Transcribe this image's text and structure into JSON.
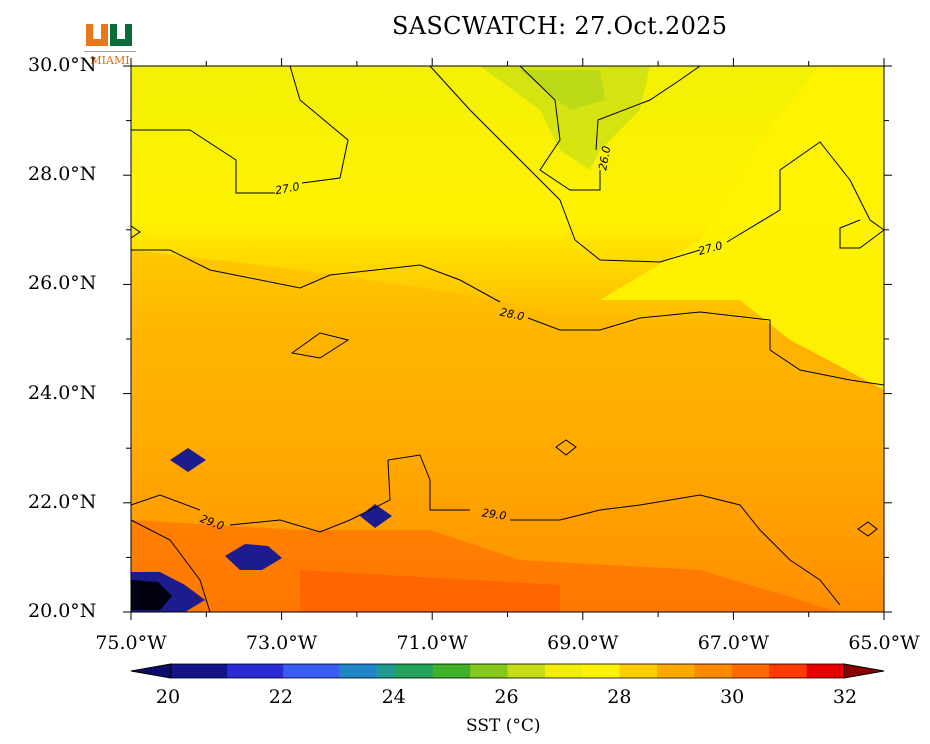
{
  "title": "SASCWATCH: 27.Oct.2025",
  "logo": {
    "text": "MIAMI",
    "icon": "miami-u-logo"
  },
  "colorbar": {
    "label": "SST (°C)",
    "ticks": [
      "20",
      "22",
      "24",
      "26",
      "28",
      "30",
      "32"
    ],
    "range": [
      20,
      32
    ]
  },
  "chart_data": {
    "type": "heatmap",
    "variable": "Sea Surface Temperature",
    "units": "°C",
    "xlim": [
      -75.0,
      -65.0
    ],
    "ylim": [
      20.0,
      30.0
    ],
    "x_tick_labels": [
      "75.0°W",
      "73.0°W",
      "71.0°W",
      "69.0°W",
      "67.0°W",
      "65.0°W"
    ],
    "y_tick_labels": [
      "20.0°N",
      "22.0°N",
      "24.0°N",
      "26.0°N",
      "28.0°N",
      "30.0°N"
    ],
    "contour_labels": [
      "26.0",
      "27.0",
      "27.0",
      "28.0",
      "29.0",
      "29.0"
    ],
    "contour_levels": [
      26.0,
      27.0,
      28.0,
      29.0
    ],
    "value_range": [
      20,
      32
    ]
  }
}
